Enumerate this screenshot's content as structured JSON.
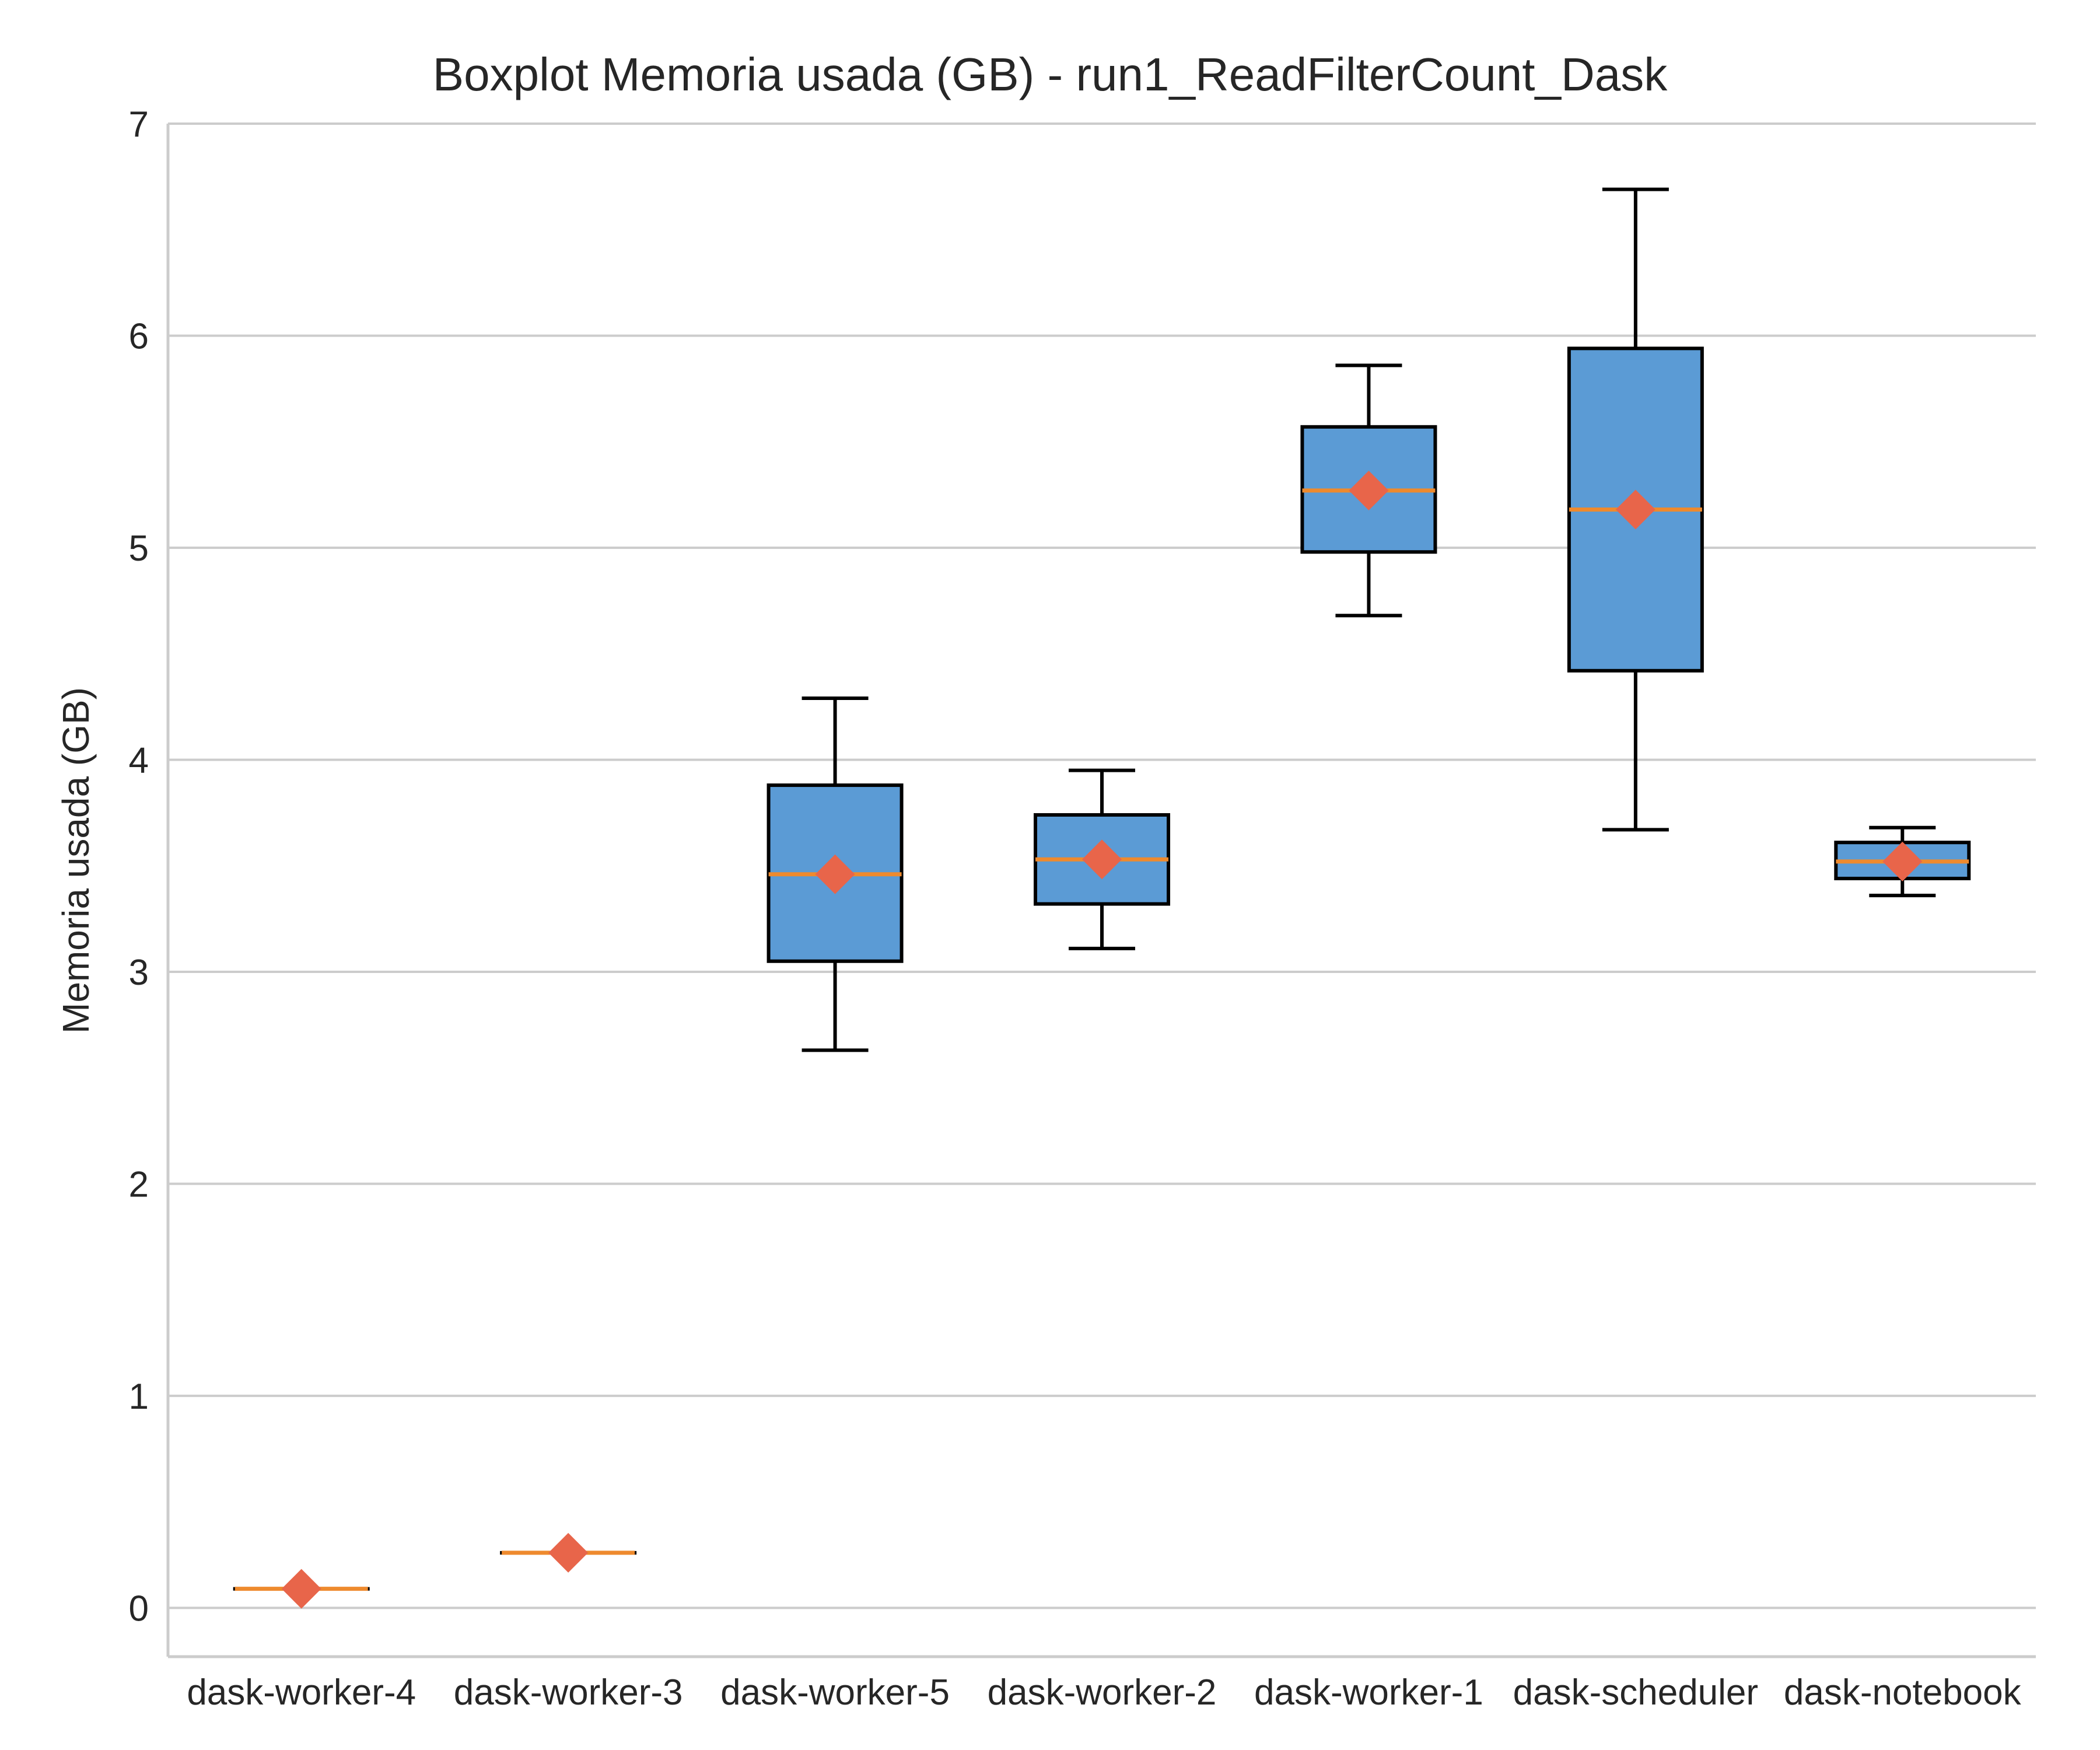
{
  "chart_data": {
    "type": "boxplot",
    "title": "Boxplot Memoria usada (GB) - run1_ReadFilterCount_Dask",
    "ylabel": "Memoria usada (GB)",
    "xlabel": "",
    "ylim": [
      -0.23,
      7.0
    ],
    "yticks": [
      "0",
      "1",
      "2",
      "3",
      "4",
      "5",
      "6",
      "7"
    ],
    "grid": "horizontal",
    "categories": [
      "dask-worker-4",
      "dask-worker-3",
      "dask-worker-5",
      "dask-worker-2",
      "dask-worker-1",
      "dask-scheduler",
      "dask-notebook"
    ],
    "boxes": [
      {
        "label": "dask-worker-4",
        "whisker_low": 0.09,
        "q1": 0.09,
        "median": 0.09,
        "q3": 0.09,
        "whisker_high": 0.09,
        "mean": 0.09
      },
      {
        "label": "dask-worker-3",
        "whisker_low": 0.26,
        "q1": 0.26,
        "median": 0.26,
        "q3": 0.26,
        "whisker_high": 0.26,
        "mean": 0.26
      },
      {
        "label": "dask-worker-5",
        "whisker_low": 2.63,
        "q1": 3.05,
        "median": 3.46,
        "q3": 3.88,
        "whisker_high": 4.29,
        "mean": 3.46
      },
      {
        "label": "dask-worker-2",
        "whisker_low": 3.11,
        "q1": 3.32,
        "median": 3.53,
        "q3": 3.74,
        "whisker_high": 3.95,
        "mean": 3.53
      },
      {
        "label": "dask-worker-1",
        "whisker_low": 4.68,
        "q1": 4.98,
        "median": 5.27,
        "q3": 5.57,
        "whisker_high": 5.86,
        "mean": 5.27
      },
      {
        "label": "dask-scheduler",
        "whisker_low": 3.67,
        "q1": 4.42,
        "median": 5.18,
        "q3": 5.94,
        "whisker_high": 6.69,
        "mean": 5.18
      },
      {
        "label": "dask-notebook",
        "whisker_low": 3.36,
        "q1": 3.44,
        "median": 3.52,
        "q3": 3.61,
        "whisker_high": 3.68,
        "mean": 3.52
      }
    ],
    "colors": {
      "box_fill": "#5b9bd5",
      "box_edge": "#000000",
      "median": "#ee8a2e",
      "mean_marker": "#e8654a",
      "grid": "#cccccc",
      "axis": "#cccccc"
    }
  }
}
